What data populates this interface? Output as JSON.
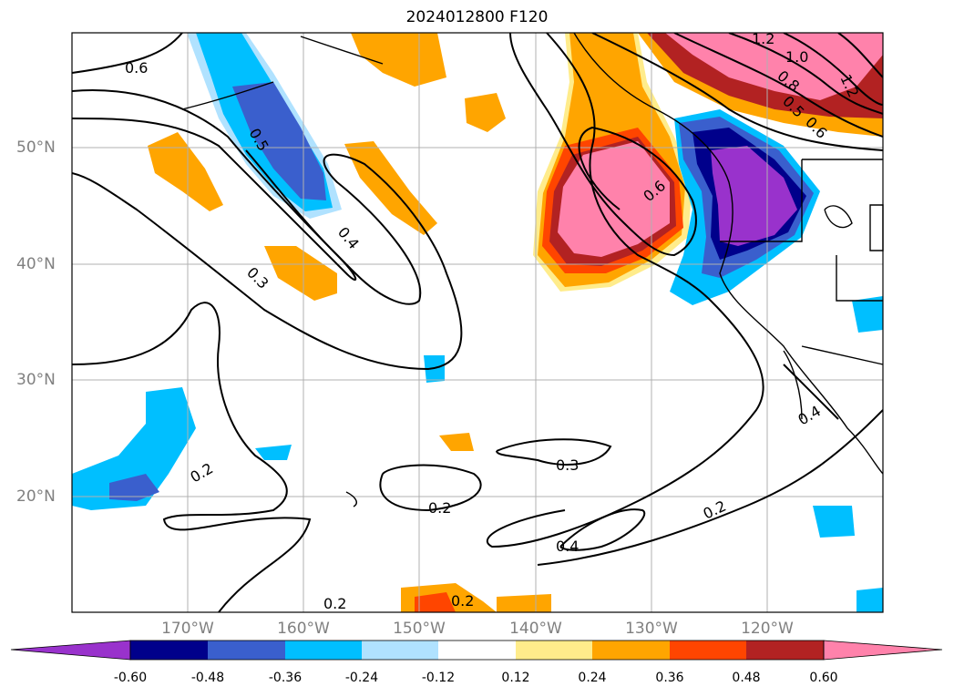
{
  "title": "2024012800 F120",
  "lat_labels": [
    "50°N",
    "40°N",
    "30°N",
    "20°N"
  ],
  "lon_labels": [
    "170°W",
    "160°W",
    "150°W",
    "140°W",
    "130°W",
    "120°W"
  ],
  "contour_labels": [
    "0.6",
    "0.5",
    "0.4",
    "0.3",
    "0.2",
    "0.3",
    "0.2",
    "0.4",
    "0.2",
    "0.2",
    "0.2",
    "0.6",
    "1.2",
    "1.0",
    "0.8",
    "0.5",
    "0.6",
    "1.2",
    "0.4"
  ],
  "colorbar": {
    "ticks": [
      "-0.60",
      "-0.48",
      "-0.36",
      "-0.24",
      "-0.12",
      "0.12",
      "0.24",
      "0.36",
      "0.48",
      "0.60"
    ],
    "colors": [
      "#9932cc",
      "#00008b",
      "#3a5fcd",
      "#00bfff",
      "#b0e2ff",
      "#ffffff",
      "#ffec8b",
      "#ffa500",
      "#ff4500",
      "#b22222",
      "#ff82ab"
    ]
  }
}
